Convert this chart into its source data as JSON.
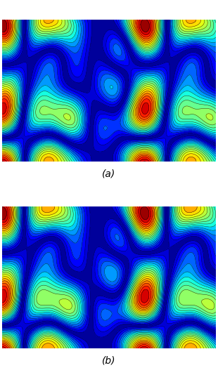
{
  "title_a": "(a)",
  "title_b": "(b)",
  "colormap": "jet",
  "n_levels": 20,
  "figsize": [
    3.1,
    5.24
  ],
  "dpi": 100,
  "background_color": "#ffffff"
}
